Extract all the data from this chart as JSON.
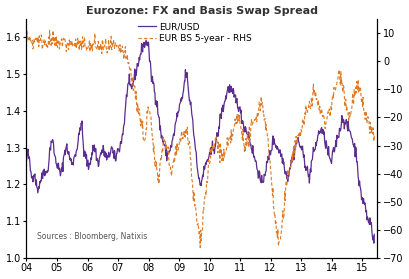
{
  "title": "Eurozone: FX and Basis Swap Spread",
  "source_text": "Sources : Bloomberg, Natixis",
  "line1_label": "EUR/USD",
  "line2_label": "EUR BS 5-year - RHS",
  "line1_color": "#5b2d8e",
  "line2_color": "#e07820",
  "background_color": "#ffffff",
  "ylim_left": [
    1.0,
    1.65
  ],
  "ylim_right": [
    -70,
    15
  ],
  "yticks_left": [
    1.0,
    1.1,
    1.2,
    1.3,
    1.4,
    1.5,
    1.6
  ],
  "yticks_right": [
    -70,
    -60,
    -50,
    -40,
    -30,
    -20,
    -10,
    0,
    10
  ],
  "xtick_labels": [
    "04",
    "05",
    "06",
    "07",
    "08",
    "09",
    "10",
    "11",
    "12",
    "13",
    "14",
    "15"
  ],
  "eurusd": [
    1.26,
    1.28,
    1.24,
    1.22,
    1.23,
    1.2,
    1.19,
    1.21,
    1.22,
    1.24,
    1.23,
    1.25,
    1.3,
    1.32,
    1.29,
    1.26,
    1.25,
    1.23,
    1.24,
    1.28,
    1.3,
    1.29,
    1.27,
    1.26,
    1.27,
    1.29,
    1.31,
    1.35,
    1.36,
    1.29,
    1.28,
    1.25,
    1.26,
    1.28,
    1.3,
    1.29,
    1.26,
    1.27,
    1.29,
    1.29,
    1.28,
    1.27,
    1.28,
    1.3,
    1.28,
    1.27,
    1.29,
    1.3,
    1.32,
    1.35,
    1.4,
    1.46,
    1.47,
    1.46,
    1.48,
    1.5,
    1.52,
    1.54,
    1.56,
    1.58,
    1.58,
    1.59,
    1.56,
    1.5,
    1.48,
    1.45,
    1.42,
    1.38,
    1.34,
    1.32,
    1.3,
    1.28,
    1.29,
    1.3,
    1.32,
    1.35,
    1.38,
    1.4,
    1.42,
    1.44,
    1.48,
    1.5,
    1.45,
    1.42,
    1.38,
    1.32,
    1.28,
    1.22,
    1.2,
    1.22,
    1.24,
    1.26,
    1.27,
    1.28,
    1.3,
    1.3,
    1.32,
    1.34,
    1.38,
    1.4,
    1.42,
    1.44,
    1.46,
    1.46,
    1.45,
    1.44,
    1.43,
    1.42,
    1.4,
    1.38,
    1.36,
    1.35,
    1.34,
    1.32,
    1.3,
    1.28,
    1.26,
    1.24,
    1.22,
    1.2,
    1.22,
    1.24,
    1.26,
    1.28,
    1.3,
    1.32,
    1.31,
    1.3,
    1.29,
    1.28,
    1.26,
    1.24,
    1.22,
    1.24,
    1.26,
    1.28,
    1.3,
    1.32,
    1.31,
    1.3,
    1.28,
    1.26,
    1.24,
    1.22,
    1.25,
    1.28,
    1.3,
    1.32,
    1.34,
    1.35,
    1.34,
    1.32,
    1.3,
    1.28,
    1.26,
    1.28,
    1.3,
    1.32,
    1.34,
    1.36,
    1.38,
    1.37,
    1.36,
    1.35,
    1.34,
    1.32,
    1.3,
    1.28,
    1.22,
    1.18,
    1.16,
    1.15,
    1.12,
    1.1,
    1.1,
    1.07,
    1.05
  ],
  "eur_bs": [
    8,
    8,
    7,
    7,
    7,
    8,
    8,
    7,
    7,
    7,
    7,
    7,
    7,
    7,
    7,
    6,
    6,
    7,
    7,
    7,
    6,
    6,
    6,
    6,
    6,
    6,
    6,
    6,
    5,
    6,
    6,
    6,
    5,
    5,
    6,
    6,
    5,
    5,
    5,
    5,
    5,
    5,
    5,
    5,
    5,
    5,
    4,
    4,
    4,
    3,
    2,
    0,
    -2,
    -5,
    -8,
    -12,
    -15,
    -18,
    -22,
    -25,
    -28,
    -20,
    -18,
    -22,
    -30,
    -35,
    -38,
    -40,
    -35,
    -30,
    -28,
    -30,
    -35,
    -40,
    -38,
    -35,
    -32,
    -30,
    -28,
    -28,
    -25,
    -25,
    -28,
    -35,
    -45,
    -50,
    -55,
    -60,
    -62,
    -58,
    -50,
    -45,
    -38,
    -35,
    -32,
    -30,
    -28,
    -30,
    -32,
    -34,
    -34,
    -32,
    -30,
    -28,
    -26,
    -24,
    -22,
    -20,
    -22,
    -25,
    -28,
    -30,
    -28,
    -26,
    -24,
    -22,
    -20,
    -18,
    -16,
    -14,
    -18,
    -22,
    -28,
    -35,
    -42,
    -50,
    -58,
    -62,
    -65,
    -60,
    -55,
    -48,
    -42,
    -38,
    -35,
    -32,
    -30,
    -28,
    -26,
    -24,
    -22,
    -20,
    -18,
    -16,
    -14,
    -12,
    -12,
    -14,
    -16,
    -18,
    -20,
    -22,
    -20,
    -18,
    -16,
    -14,
    -10,
    -8,
    -5,
    -5,
    -8,
    -12,
    -16,
    -20,
    -18,
    -14,
    -12,
    -10,
    -10,
    -12,
    -15,
    -18,
    -20,
    -22,
    -24,
    -26,
    -28
  ]
}
